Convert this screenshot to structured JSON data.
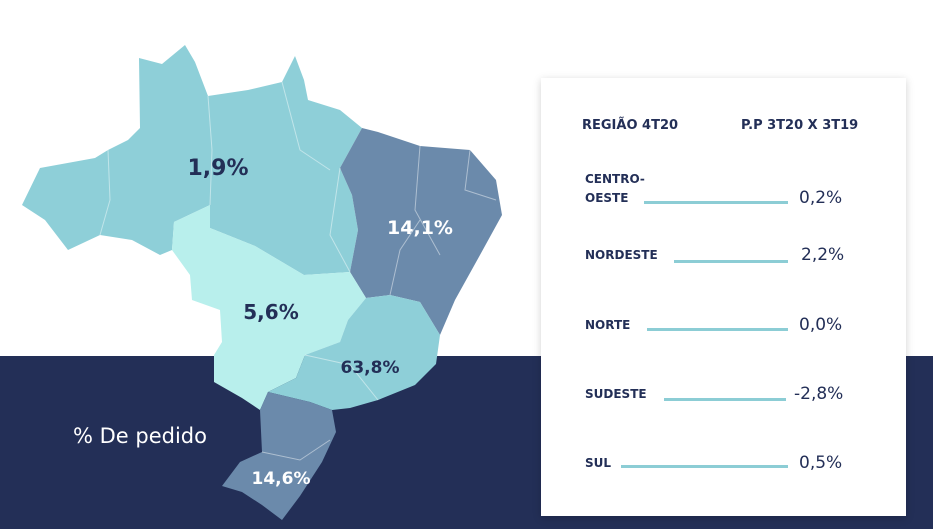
{
  "caption": "% De pedido",
  "map": {
    "labels": {
      "norte": "1,9%",
      "nordeste": "14,1%",
      "centro_oeste": "5,6%",
      "sudeste": "63,8%",
      "sul": "14,6%"
    },
    "colors": {
      "norte": "#8ecfd8",
      "nordeste": "#6b8aab",
      "centro_oeste": "#b8efec",
      "sudeste": "#8ecfd8",
      "sul": "#6b8aab",
      "dark_text": "#232f57",
      "light_text": "#ffffff"
    }
  },
  "table": {
    "header_region": "REGIÃO 4T20",
    "header_change": "P.P 3T20 X 3T19",
    "rows": [
      {
        "label_line1": "CENTRO-",
        "label_line2": "OESTE",
        "value": "0,2%"
      },
      {
        "label_line1": "NORDESTE",
        "label_line2": "",
        "value": "2,2%"
      },
      {
        "label_line1": "NORTE",
        "label_line2": "",
        "value": "0,0%"
      },
      {
        "label_line1": "SUDESTE",
        "label_line2": "",
        "value": "-2,8%"
      },
      {
        "label_line1": "SUL",
        "label_line2": "",
        "value": "0,5%"
      }
    ]
  },
  "colors": {
    "navy": "#232f57",
    "line": "#8ccdd5"
  }
}
